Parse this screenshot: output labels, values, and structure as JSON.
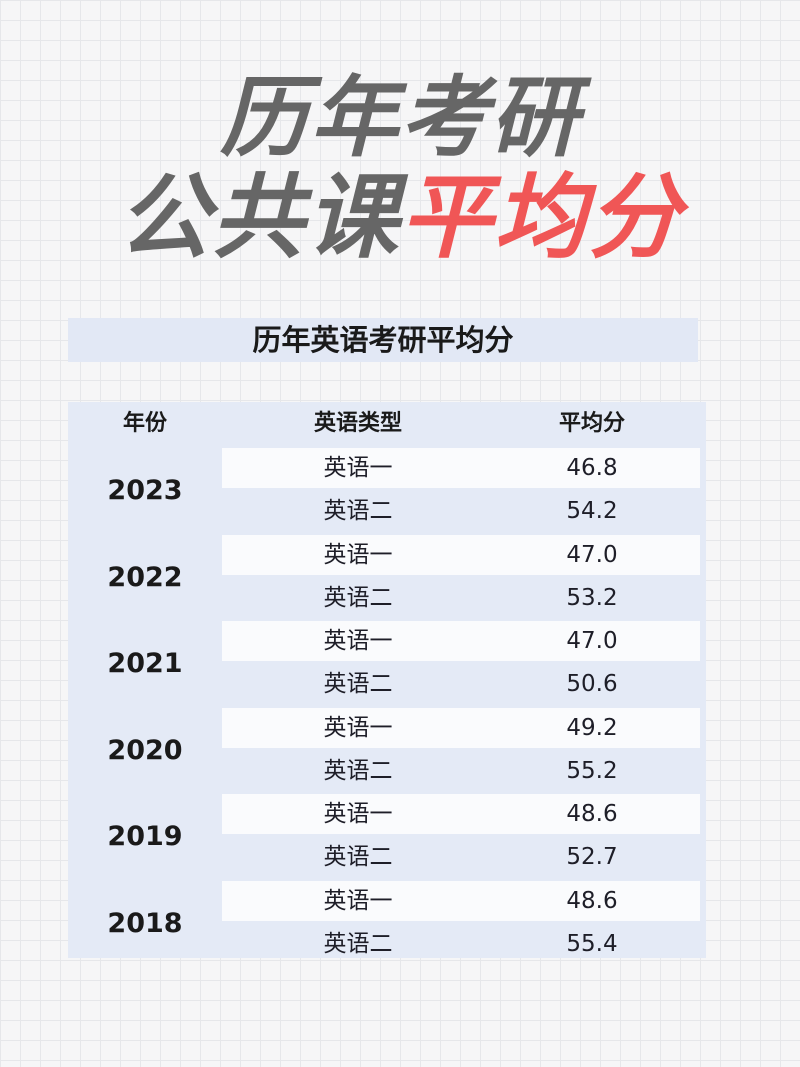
{
  "title": {
    "line1": "历年考研",
    "line2_gray": "公共课",
    "line2_red": "平均分",
    "accent_color": "#f05656"
  },
  "banner": "历年英语考研平均分",
  "table": {
    "headers": [
      "年份",
      "英语类型",
      "平均分"
    ],
    "groups": [
      {
        "year": "2023",
        "rows": [
          {
            "type": "英语一",
            "score": "46.8"
          },
          {
            "type": "英语二",
            "score": "54.2"
          }
        ]
      },
      {
        "year": "2022",
        "rows": [
          {
            "type": "英语一",
            "score": "47.0"
          },
          {
            "type": "英语二",
            "score": "53.2"
          }
        ]
      },
      {
        "year": "2021",
        "rows": [
          {
            "type": "英语一",
            "score": "47.0"
          },
          {
            "type": "英语二",
            "score": "50.6"
          }
        ]
      },
      {
        "year": "2020",
        "rows": [
          {
            "type": "英语一",
            "score": "49.2"
          },
          {
            "type": "英语二",
            "score": "55.2"
          }
        ]
      },
      {
        "year": "2019",
        "rows": [
          {
            "type": "英语一",
            "score": "48.6"
          },
          {
            "type": "英语二",
            "score": "52.7"
          }
        ]
      },
      {
        "year": "2018",
        "rows": [
          {
            "type": "英语一",
            "score": "48.6"
          },
          {
            "type": "英语二",
            "score": "55.4"
          }
        ]
      }
    ]
  }
}
